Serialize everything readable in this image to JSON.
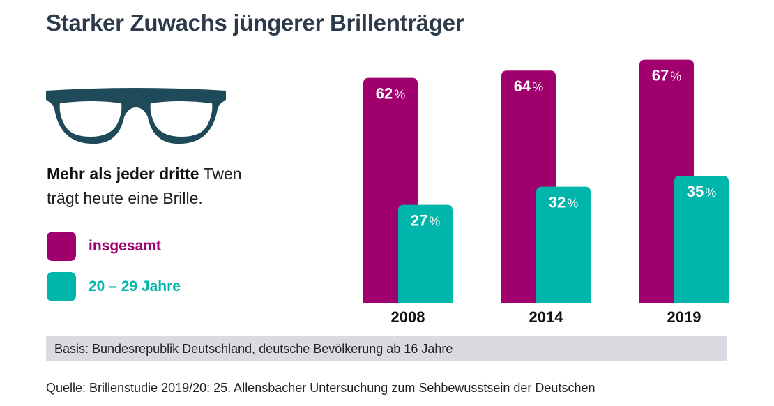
{
  "title": "Starker Zuwachs jüngerer Brillenträger",
  "lead": {
    "bold": "Mehr als jeder dritte",
    "rest1": " Twen",
    "rest2": "trägt heute eine Brille."
  },
  "icon": "glasses-icon",
  "colors": {
    "insgesamt": "#a0006e",
    "twen": "#00b5aa",
    "title": "#2c3a4a"
  },
  "basis": "Basis: Bundesrepublik Deutschland, deutsche Bevölkerung ab 16 Jahre",
  "source": "Quelle: Brillenstudie 2019/20: 25. Allensbacher Untersuchung zum Sehbewusstsein der Deutschen",
  "chart_data": {
    "type": "bar",
    "categories": [
      "2008",
      "2014",
      "2019"
    ],
    "series": [
      {
        "name": "insgesamt",
        "values": [
          62,
          64,
          67
        ]
      },
      {
        "name": "20 – 29 Jahre",
        "values": [
          27,
          32,
          35
        ]
      }
    ],
    "value_suffix": "%",
    "ylim": [
      0,
      100
    ],
    "legend": "left",
    "grid": false
  }
}
